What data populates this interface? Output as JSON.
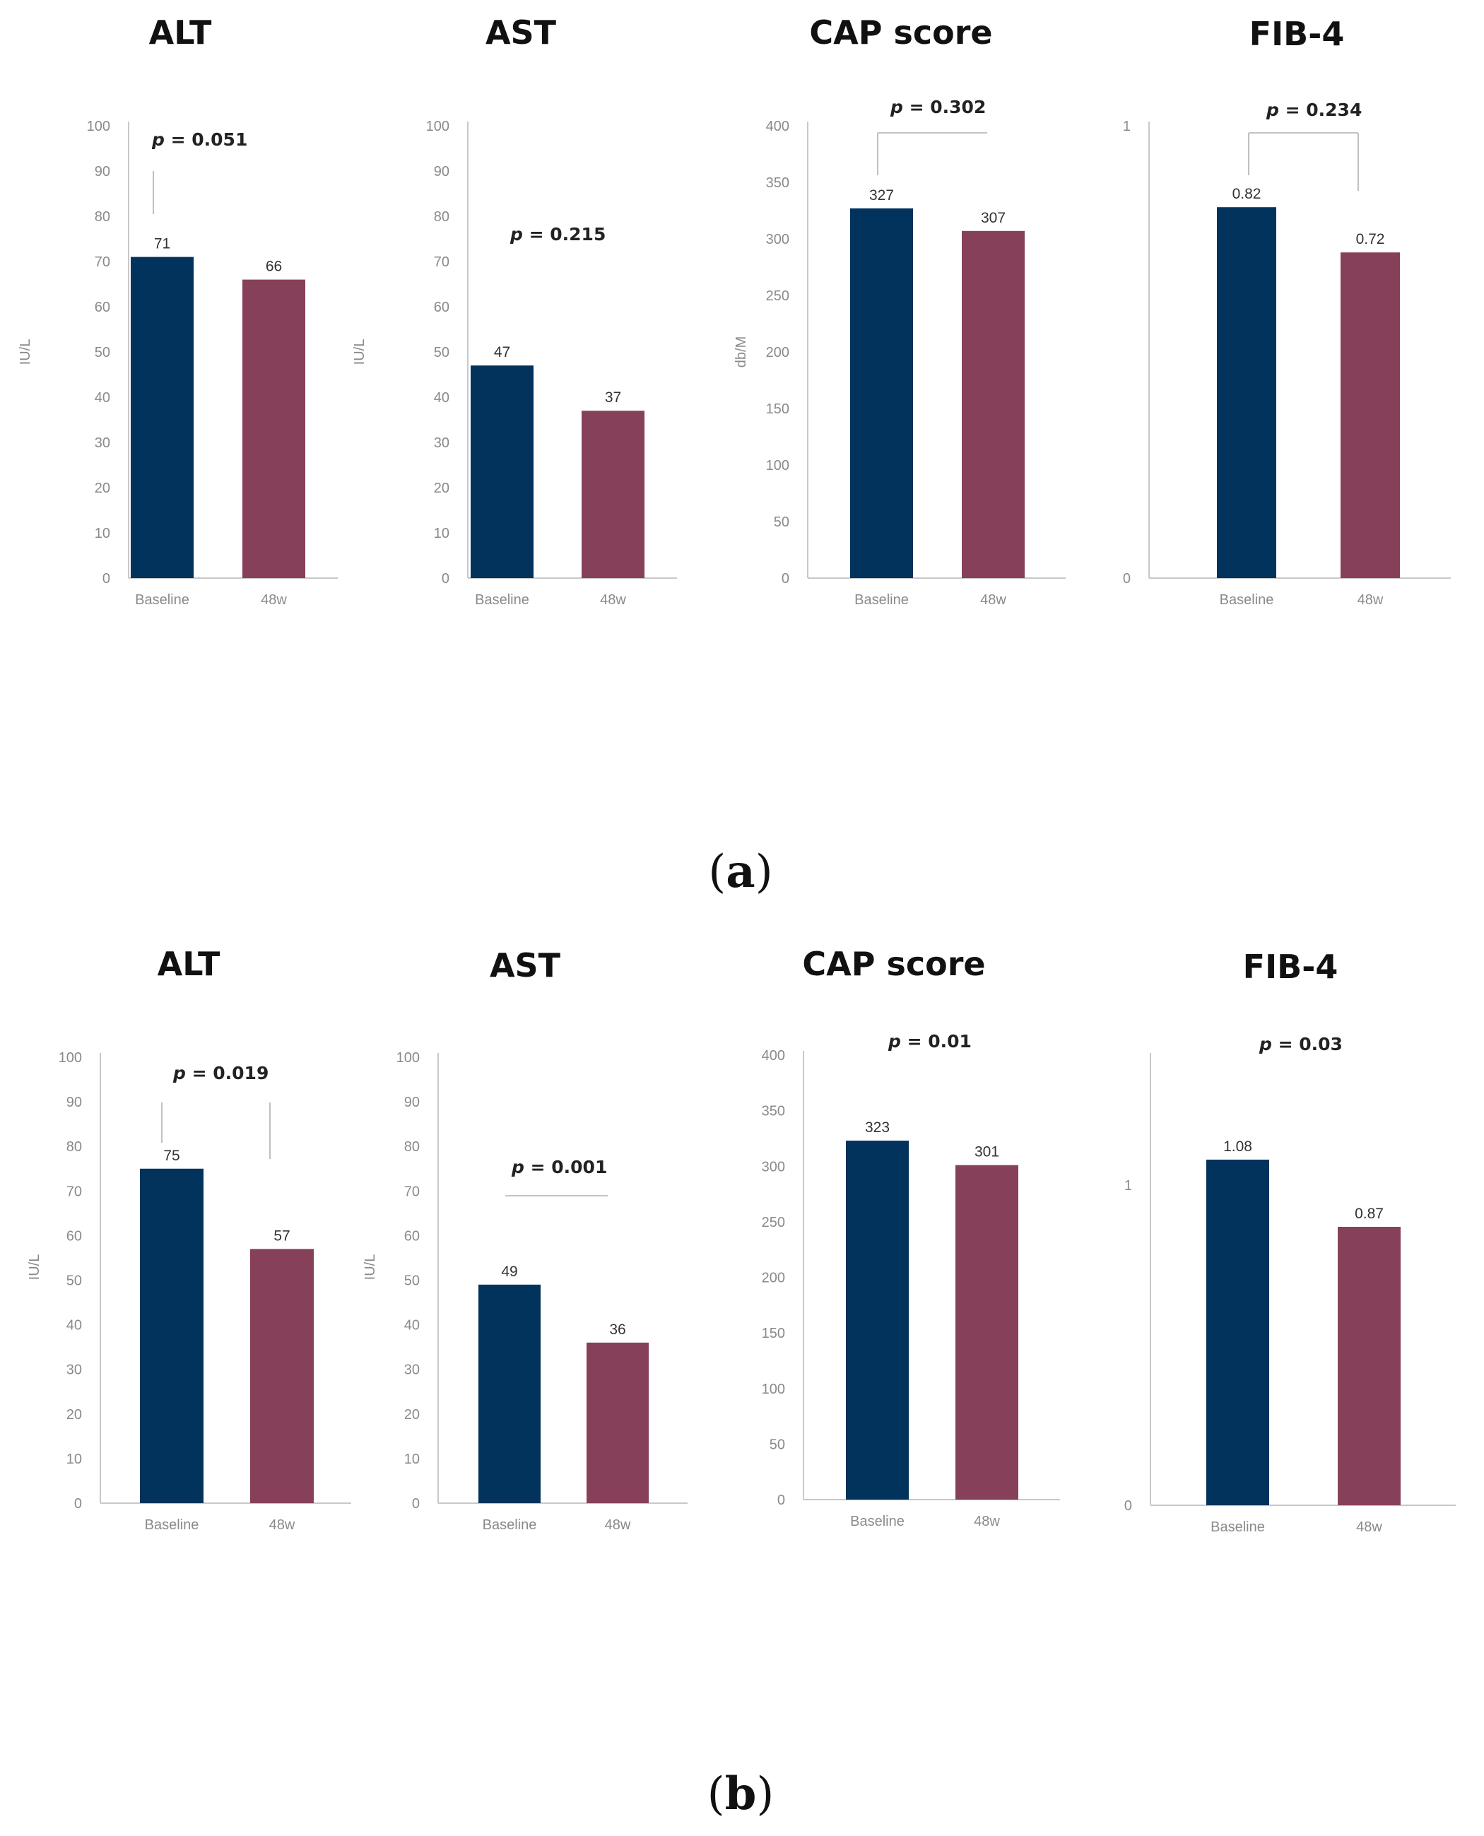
{
  "panels": [
    {
      "label": "a",
      "charts": [
        {
          "id": "a-alt",
          "type": "bar",
          "title": "ALT",
          "ylabel": "IU/L",
          "ylim": [
            0,
            100
          ],
          "yticks": [
            0,
            10,
            20,
            30,
            40,
            50,
            60,
            70,
            80,
            90,
            100
          ],
          "categories": [
            "Baseline",
            "48w"
          ],
          "values": [
            71,
            66
          ],
          "value_labels": [
            "71",
            "66"
          ],
          "p_value": "= 0.051",
          "colors": [
            "#02335c",
            "#87405a"
          ]
        },
        {
          "id": "a-ast",
          "type": "bar",
          "title": "AST",
          "ylabel": "IU/L",
          "ylim": [
            0,
            100
          ],
          "yticks": [
            0,
            10,
            20,
            30,
            40,
            50,
            60,
            70,
            80,
            90,
            100
          ],
          "categories": [
            "Baseline",
            "48w"
          ],
          "values": [
            47,
            37
          ],
          "value_labels": [
            "47",
            "37"
          ],
          "p_value": "= 0.215",
          "colors": [
            "#02335c",
            "#87405a"
          ]
        },
        {
          "id": "a-cap",
          "type": "bar",
          "title": "CAP score",
          "ylabel": "db/M",
          "ylim": [
            0,
            400
          ],
          "yticks": [
            0,
            50,
            100,
            150,
            200,
            250,
            300,
            350,
            400
          ],
          "categories": [
            "Baseline",
            "48w"
          ],
          "values": [
            327,
            307
          ],
          "value_labels": [
            "327",
            "307"
          ],
          "p_value": "= 0.302",
          "colors": [
            "#02335c",
            "#87405a"
          ]
        },
        {
          "id": "a-fib4",
          "type": "bar",
          "title": "FIB-4",
          "ylabel": "",
          "ylim": [
            0,
            1
          ],
          "yticks": [
            0,
            1
          ],
          "categories": [
            "Baseline",
            "48w"
          ],
          "values": [
            0.82,
            0.72
          ],
          "value_labels": [
            "0.82",
            "0.72"
          ],
          "p_value": "= 0.234",
          "colors": [
            "#02335c",
            "#87405a"
          ]
        }
      ]
    },
    {
      "label": "b",
      "charts": [
        {
          "id": "b-alt",
          "type": "bar",
          "title": "ALT",
          "ylabel": "IU/L",
          "ylim": [
            0,
            100
          ],
          "yticks": [
            0,
            10,
            20,
            30,
            40,
            50,
            60,
            70,
            80,
            90,
            100
          ],
          "categories": [
            "Baseline",
            "48w"
          ],
          "values": [
            75,
            57
          ],
          "value_labels": [
            "75",
            "57"
          ],
          "p_value": "= 0.019",
          "colors": [
            "#02335c",
            "#87405a"
          ]
        },
        {
          "id": "b-ast",
          "type": "bar",
          "title": "AST",
          "ylabel": "IU/L",
          "ylim": [
            0,
            100
          ],
          "yticks": [
            0,
            10,
            20,
            30,
            40,
            50,
            60,
            70,
            80,
            90,
            100
          ],
          "categories": [
            "Baseline",
            "48w"
          ],
          "values": [
            49,
            36
          ],
          "value_labels": [
            "49",
            "36"
          ],
          "p_value": "= 0.001",
          "colors": [
            "#02335c",
            "#87405a"
          ]
        },
        {
          "id": "b-cap",
          "type": "bar",
          "title": "CAP score",
          "ylabel": "",
          "ylim": [
            0,
            400
          ],
          "yticks": [
            0,
            50,
            100,
            150,
            200,
            250,
            300,
            350,
            400
          ],
          "categories": [
            "Baseline",
            "48w"
          ],
          "values": [
            323,
            301
          ],
          "value_labels": [
            "323",
            "301"
          ],
          "p_value": "= 0.01",
          "colors": [
            "#02335c",
            "#87405a"
          ]
        },
        {
          "id": "b-fib4",
          "type": "bar",
          "title": "FIB-4",
          "ylabel": "",
          "ylim": [
            0,
            1.4
          ],
          "yticks": [
            0,
            1
          ],
          "categories": [
            "Baseline",
            "48w"
          ],
          "values": [
            1.08,
            0.87
          ],
          "value_labels": [
            "1.08",
            "0.87"
          ],
          "p_value": "= 0.03",
          "colors": [
            "#02335c",
            "#87405a"
          ]
        }
      ]
    }
  ],
  "chart_data": [
    {
      "type": "bar",
      "title": "ALT",
      "panel": "a",
      "ylabel": "IU/L",
      "categories": [
        "Baseline",
        "48w"
      ],
      "values": [
        71,
        66
      ],
      "ylim": [
        0,
        100
      ],
      "annotation": "p = 0.051"
    },
    {
      "type": "bar",
      "title": "AST",
      "panel": "a",
      "ylabel": "IU/L",
      "categories": [
        "Baseline",
        "48w"
      ],
      "values": [
        47,
        37
      ],
      "ylim": [
        0,
        100
      ],
      "annotation": "p = 0.215"
    },
    {
      "type": "bar",
      "title": "CAP score",
      "panel": "a",
      "ylabel": "db/M",
      "categories": [
        "Baseline",
        "48w"
      ],
      "values": [
        327,
        307
      ],
      "ylim": [
        0,
        400
      ],
      "annotation": "p = 0.302"
    },
    {
      "type": "bar",
      "title": "FIB-4",
      "panel": "a",
      "ylabel": "",
      "categories": [
        "Baseline",
        "48w"
      ],
      "values": [
        0.82,
        0.72
      ],
      "ylim": [
        0,
        1
      ],
      "annotation": "p = 0.234"
    },
    {
      "type": "bar",
      "title": "ALT",
      "panel": "b",
      "ylabel": "IU/L",
      "categories": [
        "Baseline",
        "48w"
      ],
      "values": [
        75,
        57
      ],
      "ylim": [
        0,
        100
      ],
      "annotation": "p = 0.019"
    },
    {
      "type": "bar",
      "title": "AST",
      "panel": "b",
      "ylabel": "IU/L",
      "categories": [
        "Baseline",
        "48w"
      ],
      "values": [
        49,
        36
      ],
      "ylim": [
        0,
        100
      ],
      "annotation": "p = 0.001"
    },
    {
      "type": "bar",
      "title": "CAP score",
      "panel": "b",
      "ylabel": "",
      "categories": [
        "Baseline",
        "48w"
      ],
      "values": [
        323,
        301
      ],
      "ylim": [
        0,
        400
      ],
      "annotation": "p = 0.01"
    },
    {
      "type": "bar",
      "title": "FIB-4",
      "panel": "b",
      "ylabel": "",
      "categories": [
        "Baseline",
        "48w"
      ],
      "values": [
        1.08,
        0.87
      ],
      "ylim": [
        0,
        1.4
      ],
      "annotation": "p = 0.03"
    }
  ]
}
